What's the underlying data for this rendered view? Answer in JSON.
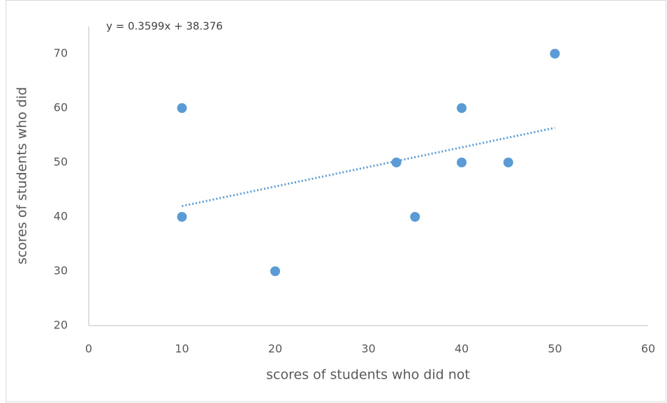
{
  "chart_data": {
    "type": "scatter",
    "x_label": "scores of students who did not",
    "y_label": "scores of students who did",
    "x": [
      10,
      10,
      20,
      33,
      35,
      40,
      40,
      45,
      50
    ],
    "values": [
      60,
      40,
      30,
      50,
      40,
      60,
      50,
      50,
      70
    ],
    "color": "#5b9bd5",
    "xlim": [
      0,
      60
    ],
    "xticks": [
      0,
      10,
      20,
      30,
      40,
      50,
      60
    ],
    "ylim": [
      20,
      75
    ],
    "yticks": [
      20,
      30,
      40,
      50,
      60,
      70
    ],
    "grid": false,
    "trendline": {
      "label": "y = 0.3599x + 38.376",
      "slope": 0.3599,
      "intercept": 38.376
    }
  }
}
